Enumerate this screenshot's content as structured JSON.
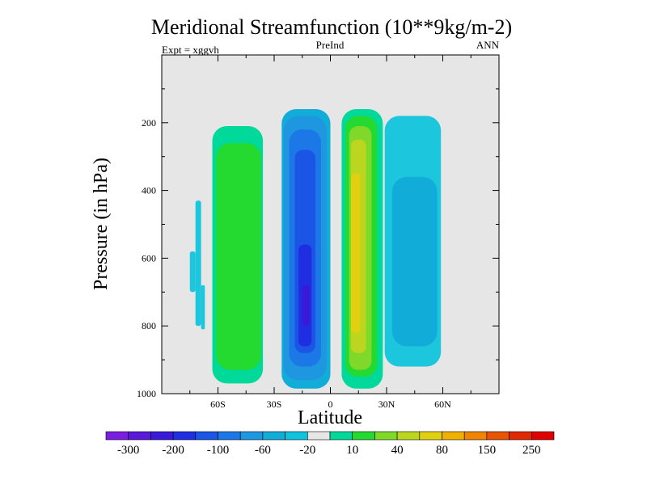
{
  "chart_data": {
    "type": "heatmap",
    "title": "Meridional Streamfunction (10**9kg/m-2)",
    "subtitle_left": "Expt = xggvh",
    "subtitle_center": "PreInd",
    "subtitle_right": "ANN",
    "xlabel": "Latitude",
    "ylabel": "Pressure (in hPa)",
    "xlim": [
      -90,
      90
    ],
    "ylim": [
      1000,
      0
    ],
    "y_scale": "linear",
    "x_ticks": [
      {
        "value": -60,
        "label": "60S"
      },
      {
        "value": -30,
        "label": "30S"
      },
      {
        "value": 0,
        "label": "0"
      },
      {
        "value": 30,
        "label": "30N"
      },
      {
        "value": 60,
        "label": "60N"
      }
    ],
    "y_ticks": [
      {
        "value": 200,
        "label": "200"
      },
      {
        "value": 400,
        "label": "400"
      },
      {
        "value": 600,
        "label": "600"
      },
      {
        "value": 800,
        "label": "800"
      },
      {
        "value": 1000,
        "label": "1000"
      }
    ],
    "background_color": "#e6e6e6",
    "colorbar": {
      "colors": [
        "#7a1fe0",
        "#5a18d8",
        "#3a19d8",
        "#1e2ee0",
        "#1a55e6",
        "#1c78e6",
        "#1f96e0",
        "#12acd8",
        "#0fc3dc",
        "#e6e6e6",
        "#00d99a",
        "#24d930",
        "#7fd82a",
        "#bcd620",
        "#e0d010",
        "#f0b000",
        "#ee8400",
        "#e85400",
        "#e22800",
        "#e00000"
      ],
      "labels": [
        "-300",
        "-200",
        "-100",
        "-60",
        "-20",
        "10",
        "40",
        "80",
        "150",
        "250"
      ]
    },
    "cells": [
      {
        "name": "A",
        "lat_range": [
          -75,
          -72
        ],
        "p_range": [
          580,
          700
        ],
        "value": -10,
        "color": "#1cc6dc"
      },
      {
        "name": "B",
        "lat_range": [
          -72,
          -69
        ],
        "p_range": [
          430,
          800
        ],
        "value": -10,
        "color": "#1cc6dc"
      },
      {
        "name": "C",
        "lat_range": [
          -69,
          -67
        ],
        "p_range": [
          680,
          810
        ],
        "value": -10,
        "color": "#1cc6dc"
      },
      {
        "name": "D",
        "lat_range": [
          -63,
          -36
        ],
        "p_range": [
          210,
          970
        ],
        "value": 15,
        "color": "#00d99a"
      },
      {
        "name": "E",
        "lat_range": [
          -61,
          -37
        ],
        "p_range": [
          260,
          930
        ],
        "value": 30,
        "color": "#24d930"
      },
      {
        "name": "F",
        "lat_range": [
          -26,
          0
        ],
        "p_range": [
          160,
          985
        ],
        "value": -15,
        "color": "#12acd8"
      },
      {
        "name": "G",
        "lat_range": [
          -25,
          -2
        ],
        "p_range": [
          180,
          960
        ],
        "value": -30,
        "color": "#1f96e0"
      },
      {
        "name": "H",
        "lat_range": [
          -22,
          -5
        ],
        "p_range": [
          220,
          920
        ],
        "value": -45,
        "color": "#1c78e6"
      },
      {
        "name": "I",
        "lat_range": [
          -19,
          -8
        ],
        "p_range": [
          280,
          880
        ],
        "value": -60,
        "color": "#1a55e6"
      },
      {
        "name": "J",
        "lat_range": [
          -17,
          -10
        ],
        "p_range": [
          560,
          860
        ],
        "value": -80,
        "color": "#1e2ee0"
      },
      {
        "name": "K",
        "lat_range": [
          -15,
          -11
        ],
        "p_range": [
          680,
          800
        ],
        "value": -100,
        "color": "#3a19d8"
      },
      {
        "name": "L",
        "lat_range": [
          6,
          28
        ],
        "p_range": [
          160,
          985
        ],
        "value": 15,
        "color": "#00d99a"
      },
      {
        "name": "M",
        "lat_range": [
          8,
          25
        ],
        "p_range": [
          180,
          950
        ],
        "value": 30,
        "color": "#24d930"
      },
      {
        "name": "N",
        "lat_range": [
          10,
          22
        ],
        "p_range": [
          210,
          930
        ],
        "value": 60,
        "color": "#7fd82a"
      },
      {
        "name": "O",
        "lat_range": [
          11,
          19
        ],
        "p_range": [
          250,
          880
        ],
        "value": 80,
        "color": "#bcd620"
      },
      {
        "name": "P",
        "lat_range": [
          11,
          16
        ],
        "p_range": [
          350,
          820
        ],
        "value": 100,
        "color": "#e0d010"
      },
      {
        "name": "Q",
        "lat_range": [
          29,
          59
        ],
        "p_range": [
          180,
          920
        ],
        "value": -10,
        "color": "#1cc6dc"
      },
      {
        "name": "R",
        "lat_range": [
          33,
          57
        ],
        "p_range": [
          360,
          860
        ],
        "value": -20,
        "color": "#12acd8"
      }
    ]
  }
}
